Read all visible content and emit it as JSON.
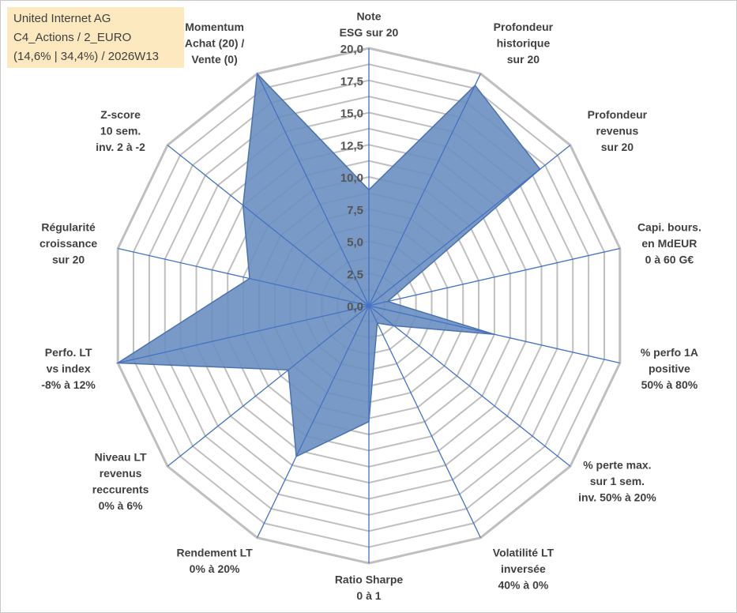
{
  "info_box": {
    "line1": "United Internet AG",
    "line2": "C4_Actions / 2_EURO",
    "line3": "(14,6% | 34,4%) / 2026W13"
  },
  "chart_data": {
    "type": "radar",
    "title": "",
    "rlim": [
      0,
      20
    ],
    "ticks": [
      "0,0",
      "2,5",
      "5,0",
      "7,5",
      "10,0",
      "12,5",
      "15,0",
      "17,5",
      "20,0"
    ],
    "grid": true,
    "axes": [
      {
        "label": [
          "Note",
          "ESG sur 20"
        ],
        "value": 9.0
      },
      {
        "label": [
          "Profondeur",
          "historique",
          "sur 20"
        ],
        "value": 19.0
      },
      {
        "label": [
          "Profondeur",
          "revenus",
          "sur 20"
        ],
        "value": 17.0
      },
      {
        "label": [
          "Capi. bours.",
          "en MdEUR",
          "0 à 60 G€"
        ],
        "value": 1.5
      },
      {
        "label": [
          "% perfo 1A",
          "positive",
          "50% à 80%"
        ],
        "value": 10.0
      },
      {
        "label": [
          "% perte max.",
          "sur 1 sem.",
          "inv. 50% à 20%"
        ],
        "value": 2.5
      },
      {
        "label": [
          "Volatilité LT",
          "inversée",
          "40% à 0%"
        ],
        "value": 1.5
      },
      {
        "label": [
          "Ratio Sharpe",
          "0 à 1"
        ],
        "value": 9.0
      },
      {
        "label": [
          "Rendement LT",
          "0% à 20%"
        ],
        "value": 13.0
      },
      {
        "label": [
          "Niveau LT",
          "revenus",
          "reccurents",
          "0% à 6%"
        ],
        "value": 8.0
      },
      {
        "label": [
          "Perfo. LT",
          "vs index",
          "-8% à 12%"
        ],
        "value": 20.0
      },
      {
        "label": [
          "Régularité",
          "croissance",
          "sur 20"
        ],
        "value": 9.5
      },
      {
        "label": [
          "Z-score",
          "10 sem.",
          "inv. 2 à -2"
        ],
        "value": 12.5
      },
      {
        "label": [
          "Momentum",
          "Achat (20) /",
          "Vente (0)"
        ],
        "value": 20.0
      }
    ],
    "colors": {
      "fill": "#6a8fc0",
      "stroke": "#4a72b0",
      "spoke": "#4472c4",
      "grid": "#bfbfbf"
    }
  }
}
